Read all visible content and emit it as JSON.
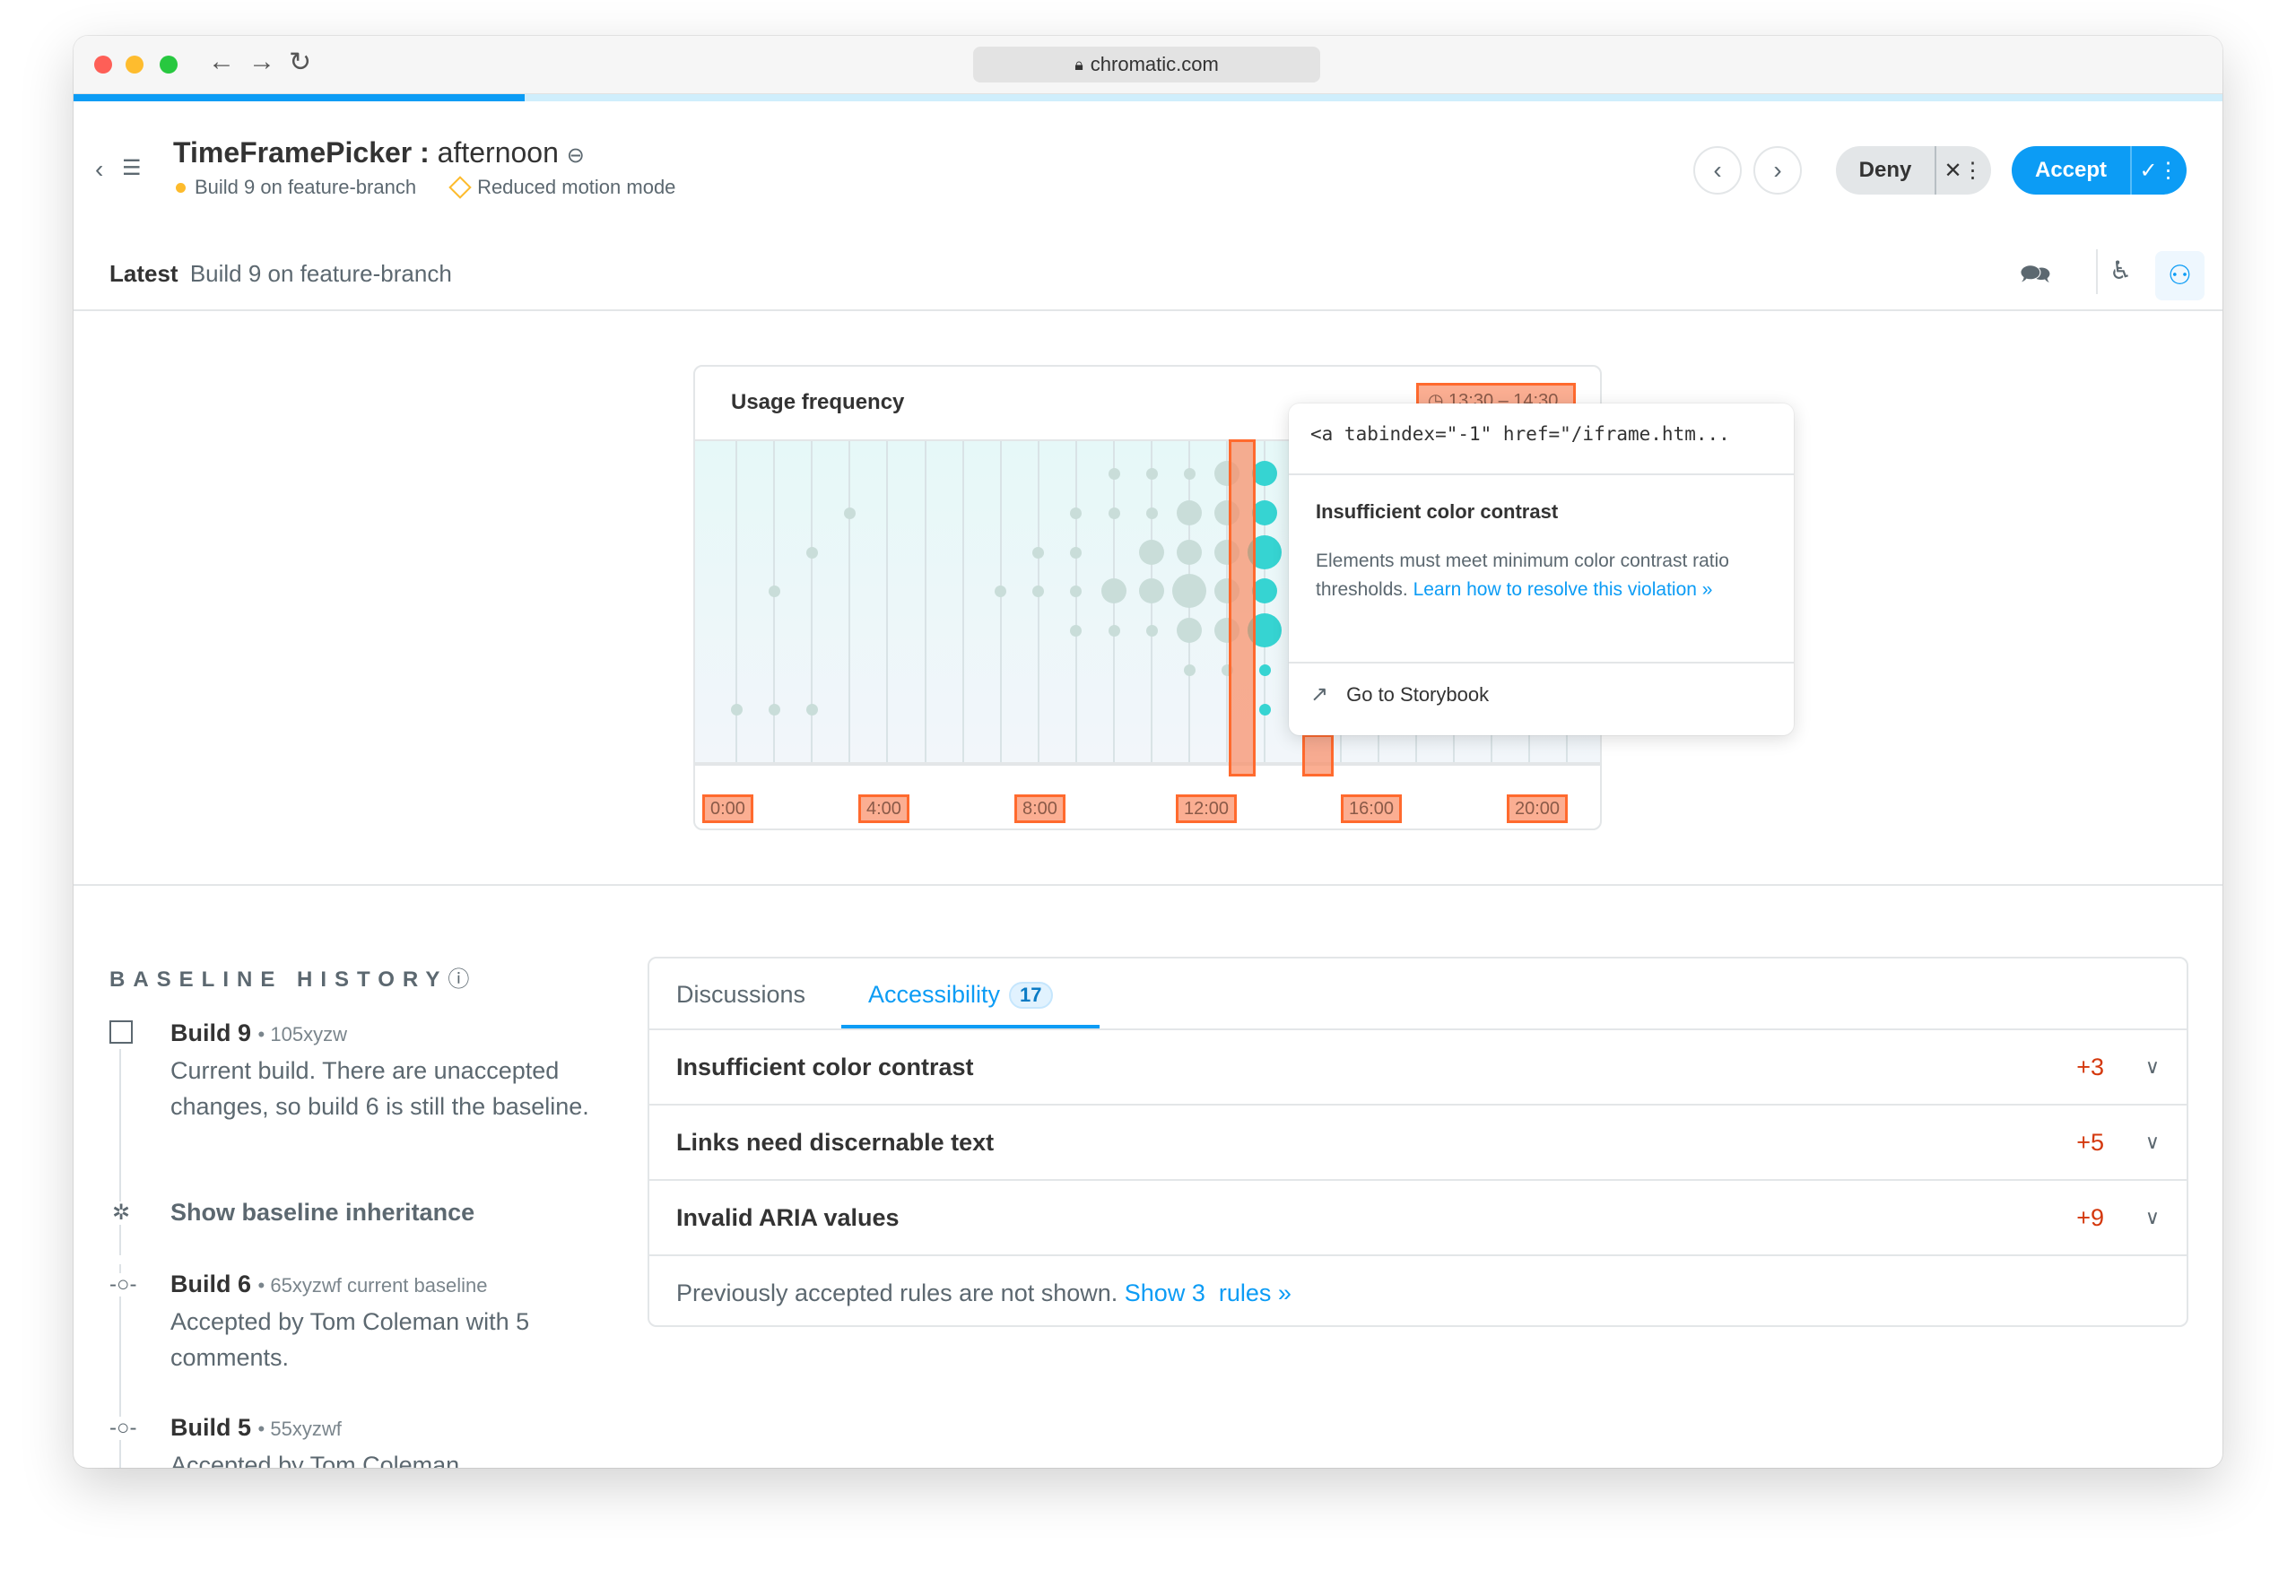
{
  "browser": {
    "url": "chromatic.com",
    "progress_percent": 21
  },
  "header": {
    "title": "TimeFramePicker",
    "separator": ":",
    "story": "afternoon",
    "build_status": "Build 9 on feature-branch",
    "mode": "Reduced motion mode",
    "deny_label": "Deny",
    "accept_label": "Accept"
  },
  "latest_bar": {
    "label": "Latest",
    "value": "Build 9 on feature-branch"
  },
  "preview": {
    "chart_title": "Usage frequency",
    "range_label": "13:30 – 14:30",
    "x_labels": [
      "0:00",
      "4:00",
      "8:00",
      "12:00",
      "16:00",
      "20:00"
    ],
    "colors": {
      "dot": "#c9ddd9",
      "selected_dot": "#36d4d2",
      "violation": "#ff6a2e",
      "accent": "#0c9cf5"
    },
    "dots_by_hour": [
      [
        0,
        0,
        0,
        0,
        0,
        0,
        1
      ],
      [
        0,
        0,
        0,
        1,
        0,
        0,
        1
      ],
      [
        0,
        0,
        1,
        0,
        0,
        0,
        1
      ],
      [
        0,
        1,
        0,
        0,
        0,
        0,
        0
      ],
      [
        0,
        0,
        0,
        0,
        0,
        0,
        0
      ],
      [
        0,
        0,
        0,
        0,
        0,
        0,
        0
      ],
      [
        0,
        0,
        0,
        0,
        0,
        0,
        0
      ],
      [
        0,
        0,
        0,
        1,
        0,
        0,
        0
      ],
      [
        0,
        0,
        1,
        1,
        0,
        0,
        0
      ],
      [
        0,
        1,
        1,
        1,
        1,
        0,
        0
      ],
      [
        1,
        1,
        0,
        2,
        1,
        0,
        0
      ],
      [
        1,
        1,
        2,
        2,
        1,
        0,
        0
      ],
      [
        1,
        2,
        2,
        3,
        2,
        1,
        0
      ],
      [
        2,
        2,
        2,
        2,
        2,
        1,
        0
      ]
    ],
    "selected_hour_dots": [
      2,
      2,
      3,
      2,
      3,
      1,
      1
    ]
  },
  "tooltip": {
    "code": "<a tabindex=\"-1\" href=\"/iframe.htm...",
    "title": "Insufficient color contrast",
    "description": "Elements must meet minimum color contrast ratio thresholds.",
    "link": "Learn how to resolve this violation »",
    "action": "Go to Storybook"
  },
  "baseline_history": {
    "title": "BASELINE HISTORY",
    "items": [
      {
        "build": "Build 9",
        "hash": "105xyzw",
        "text": "Current build. There are unaccepted changes, so build 6 is still the baseline."
      },
      {
        "build": "Build 6",
        "hash": "65xyzwf current baseline",
        "text": "Accepted by Tom Coleman with 5 comments."
      },
      {
        "build": "Build 5",
        "hash": "55xyzwf",
        "text": "Accepted by Tom Coleman"
      }
    ],
    "inheritance_label": "Show baseline inheritance"
  },
  "tabs": {
    "items": [
      {
        "label": "Discussions"
      },
      {
        "label": "Accessibility",
        "badge": "17",
        "active": true
      }
    ],
    "rules": [
      {
        "name": "Insufficient color contrast",
        "count": "+3"
      },
      {
        "name": "Links need discernable text",
        "count": "+5"
      },
      {
        "name": "Invalid ARIA values",
        "count": "+9"
      }
    ],
    "footer_text": "Previously accepted rules are not shown.",
    "footer_link": "Show 3  rules »"
  }
}
